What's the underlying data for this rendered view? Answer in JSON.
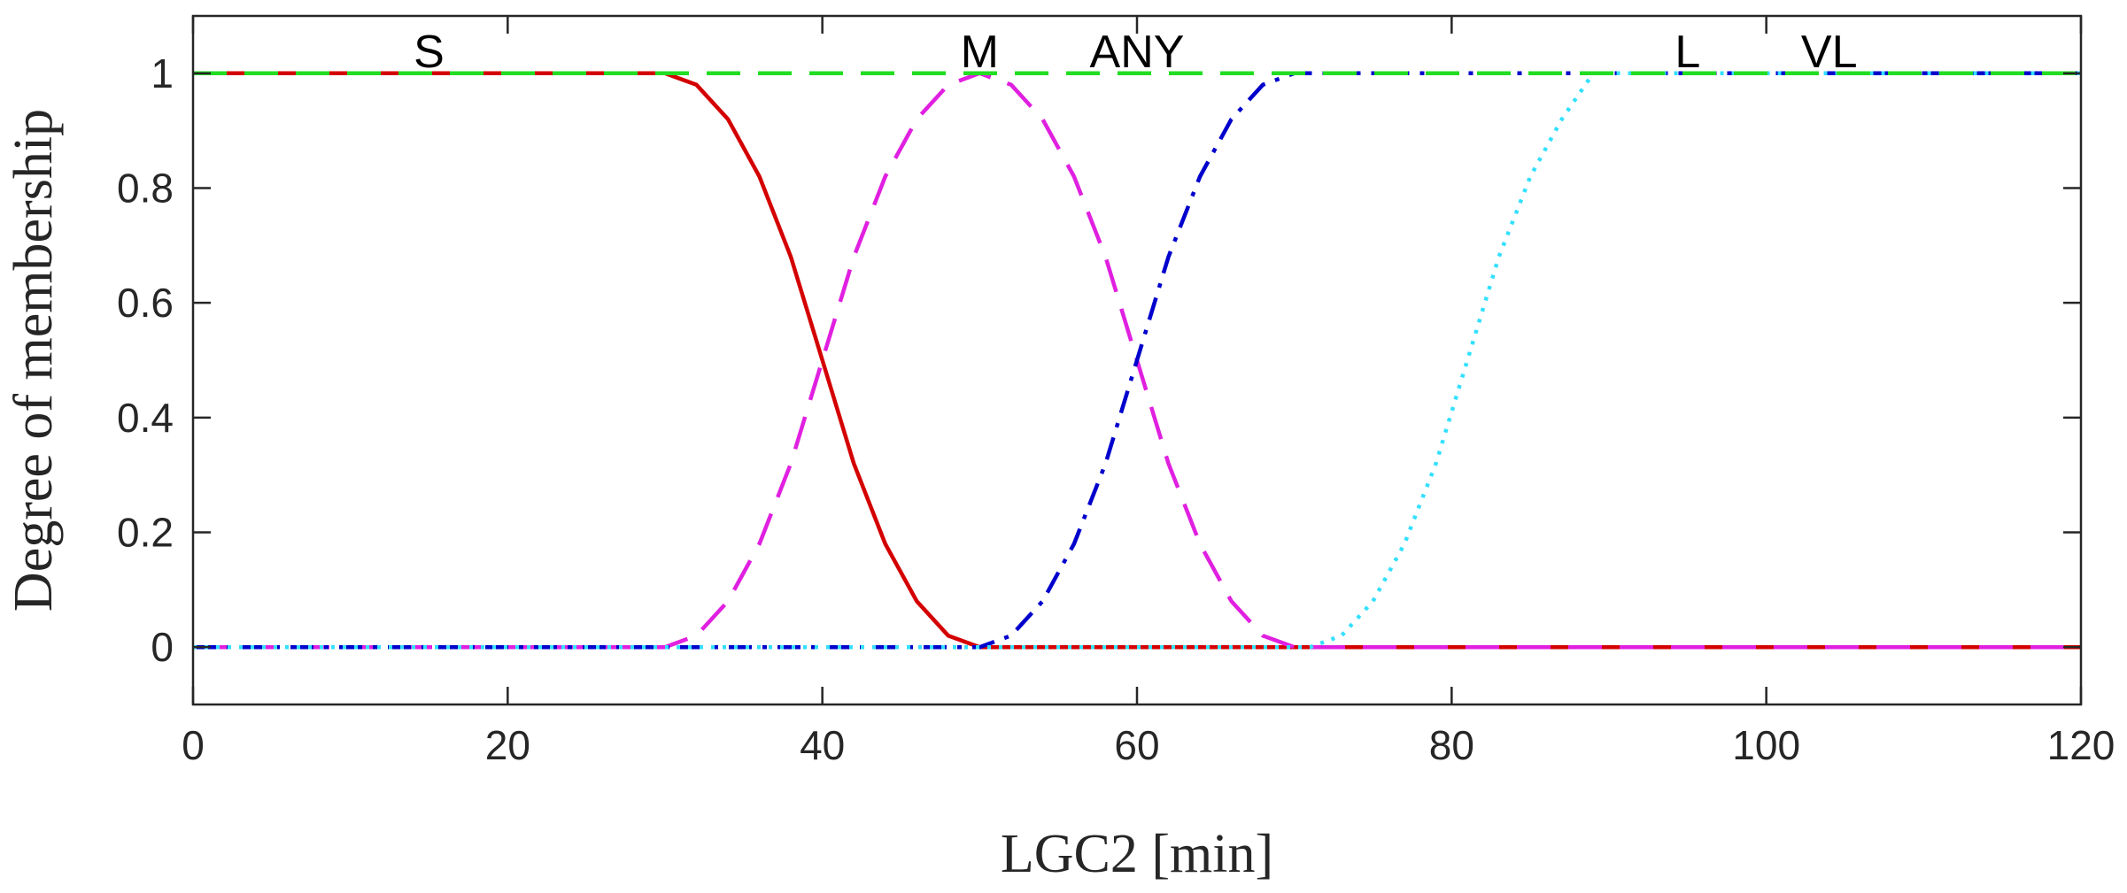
{
  "chart_data": {
    "type": "line",
    "xlabel": "LGC2 [min]",
    "ylabel": "Degree of membership",
    "xlim": [
      0,
      120
    ],
    "ylim": [
      -0.1,
      1.1
    ],
    "xticks": [
      0,
      20,
      40,
      60,
      80,
      100,
      120
    ],
    "yticks": [
      0,
      0.2,
      0.4,
      0.6,
      0.8,
      1
    ],
    "xtick_labels": [
      "0",
      "20",
      "40",
      "60",
      "80",
      "100",
      "120"
    ],
    "ytick_labels": [
      "0",
      "0.2",
      "0.4",
      "0.6",
      "0.8",
      "1"
    ],
    "grid": false,
    "set_labels": [
      {
        "text": "S",
        "x": 15
      },
      {
        "text": "M",
        "x": 50
      },
      {
        "text": "ANY",
        "x": 60
      },
      {
        "text": "L",
        "x": 95
      },
      {
        "text": "VL",
        "x": 104
      }
    ],
    "series": [
      {
        "color": "#d40000",
        "style": "solid",
        "x": [
          0,
          30,
          32,
          34,
          36,
          38,
          40,
          42,
          44,
          46,
          48,
          50,
          120
        ],
        "y": [
          1,
          1,
          0.98,
          0.92,
          0.82,
          0.68,
          0.5,
          0.32,
          0.18,
          0.08,
          0.02,
          0,
          0
        ]
      },
      {
        "color": "#e020e0",
        "style": "dashed",
        "x": [
          0,
          30,
          32,
          34,
          36,
          38,
          40,
          42,
          44,
          46,
          48,
          50,
          52,
          54,
          56,
          58,
          60,
          62,
          64,
          66,
          68,
          70,
          120
        ],
        "y": [
          0,
          0,
          0.02,
          0.08,
          0.18,
          0.32,
          0.5,
          0.68,
          0.82,
          0.92,
          0.98,
          1,
          0.98,
          0.92,
          0.82,
          0.68,
          0.5,
          0.32,
          0.18,
          0.08,
          0.02,
          0,
          0
        ]
      },
      {
        "color": "#0000cc",
        "style": "dashdot",
        "x": [
          0,
          50,
          52,
          54,
          56,
          58,
          60,
          62,
          64,
          66,
          68,
          70,
          120
        ],
        "y": [
          0,
          0,
          0.02,
          0.08,
          0.18,
          0.32,
          0.5,
          0.68,
          0.82,
          0.92,
          0.98,
          1,
          1
        ]
      },
      {
        "color": "#33e0ff",
        "style": "dotted",
        "x": [
          0,
          71,
          73,
          75,
          77,
          79,
          81,
          83,
          85,
          87,
          89,
          120
        ],
        "y": [
          0,
          0,
          0.02,
          0.08,
          0.18,
          0.32,
          0.5,
          0.68,
          0.82,
          0.92,
          1,
          1
        ]
      },
      {
        "color": "#22dd22",
        "style": "dashed",
        "x": [
          0,
          120
        ],
        "y": [
          1,
          1
        ]
      }
    ]
  }
}
